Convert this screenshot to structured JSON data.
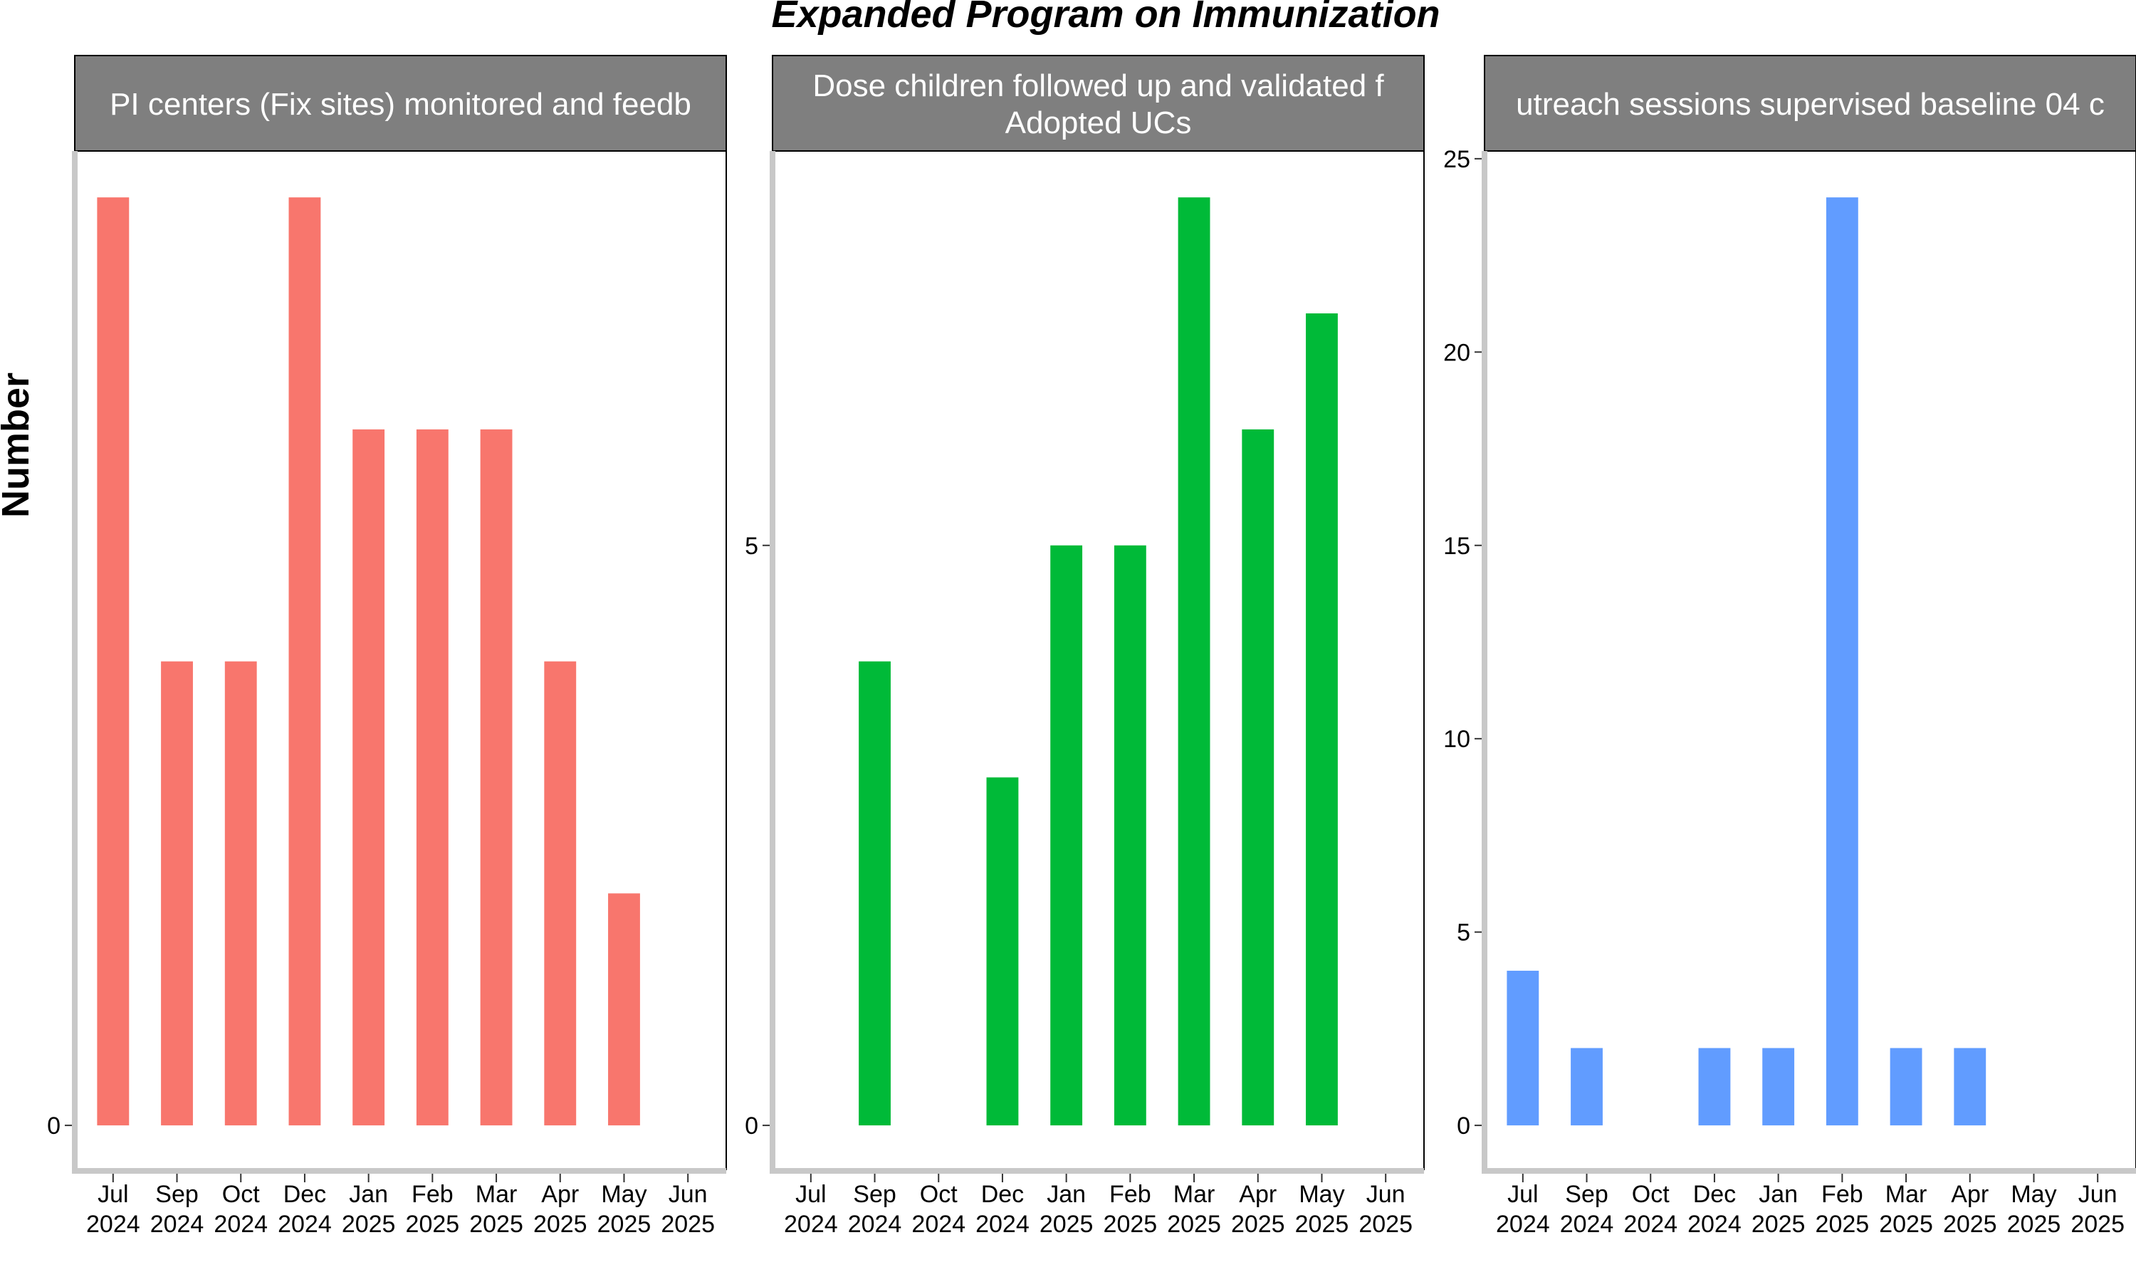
{
  "figure": {
    "title": "Expanded Program on Immunization",
    "ylabel": "Number",
    "x_labels": [
      [
        "Jul",
        "2024"
      ],
      [
        "Sep",
        "2024"
      ],
      [
        "Oct",
        "2024"
      ],
      [
        "Dec",
        "2024"
      ],
      [
        "Jan",
        "2025"
      ],
      [
        "Feb",
        "2025"
      ],
      [
        "Mar",
        "2025"
      ],
      [
        "Apr",
        "2025"
      ],
      [
        "May",
        "2025"
      ],
      [
        "Jun",
        "2025"
      ]
    ]
  },
  "chart_data": [
    {
      "type": "bar",
      "panel_title_lines": [
        "PI centers (Fix sites) monitored and feedb"
      ],
      "color": "#F8766D",
      "categories": [
        "Jul 2024",
        "Sep 2024",
        "Oct 2024",
        "Dec 2024",
        "Jan 2025",
        "Feb 2025",
        "Mar 2025",
        "Apr 2025",
        "May 2025",
        "Jun 2025"
      ],
      "values": [
        8,
        4,
        4,
        8,
        6,
        6,
        6,
        4,
        2,
        null
      ],
      "ylim": [
        -0.38,
        8.4
      ],
      "yticks": [
        0
      ]
    },
    {
      "type": "bar",
      "panel_title_lines": [
        "Dose children followed up and validated f",
        "Adopted UCs"
      ],
      "color": "#00BA38",
      "categories": [
        "Jul 2024",
        "Sep 2024",
        "Oct 2024",
        "Dec 2024",
        "Jan 2025",
        "Feb 2025",
        "Mar 2025",
        "Apr 2025",
        "May 2025",
        "Jun 2025"
      ],
      "values": [
        null,
        4,
        null,
        3,
        5,
        5,
        8,
        6,
        7,
        null
      ],
      "ylim": [
        -0.38,
        8.4
      ],
      "yticks": [
        0,
        5
      ]
    },
    {
      "type": "bar",
      "panel_title_lines": [
        "utreach sessions supervised baseline 04 c"
      ],
      "color": "#619CFF",
      "categories": [
        "Jul 2024",
        "Sep 2024",
        "Oct 2024",
        "Dec 2024",
        "Jan 2025",
        "Feb 2025",
        "Mar 2025",
        "Apr 2025",
        "May 2025",
        "Jun 2025"
      ],
      "values": [
        4,
        2,
        null,
        2,
        2,
        24,
        2,
        2,
        null,
        null
      ],
      "ylim": [
        -1.14,
        25.2
      ],
      "yticks": [
        0,
        5,
        10,
        15,
        20,
        25
      ]
    }
  ]
}
